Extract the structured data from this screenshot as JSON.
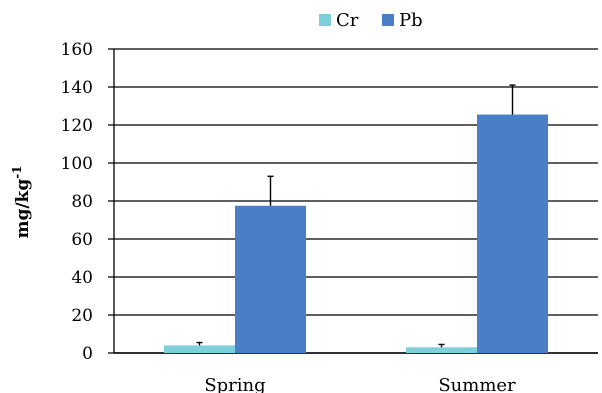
{
  "chart_data": {
    "type": "bar",
    "categories": [
      "Spring",
      "Summer"
    ],
    "series": [
      {
        "name": "Cr",
        "color": "#7ecfdc",
        "values": [
          4,
          3
        ],
        "errors": [
          1.5,
          1.5
        ]
      },
      {
        "name": "Pb",
        "color": "#4a7fc8",
        "values": [
          77.5,
          125.5
        ],
        "errors": [
          15.5,
          15.5
        ]
      }
    ],
    "ylabel_base": "mg/kg",
    "ylabel_sup": "-1",
    "ylim": [
      0,
      160
    ],
    "yticks": [
      0,
      20,
      40,
      60,
      80,
      100,
      120,
      140,
      160
    ],
    "grid": true,
    "legend_position": "top"
  }
}
